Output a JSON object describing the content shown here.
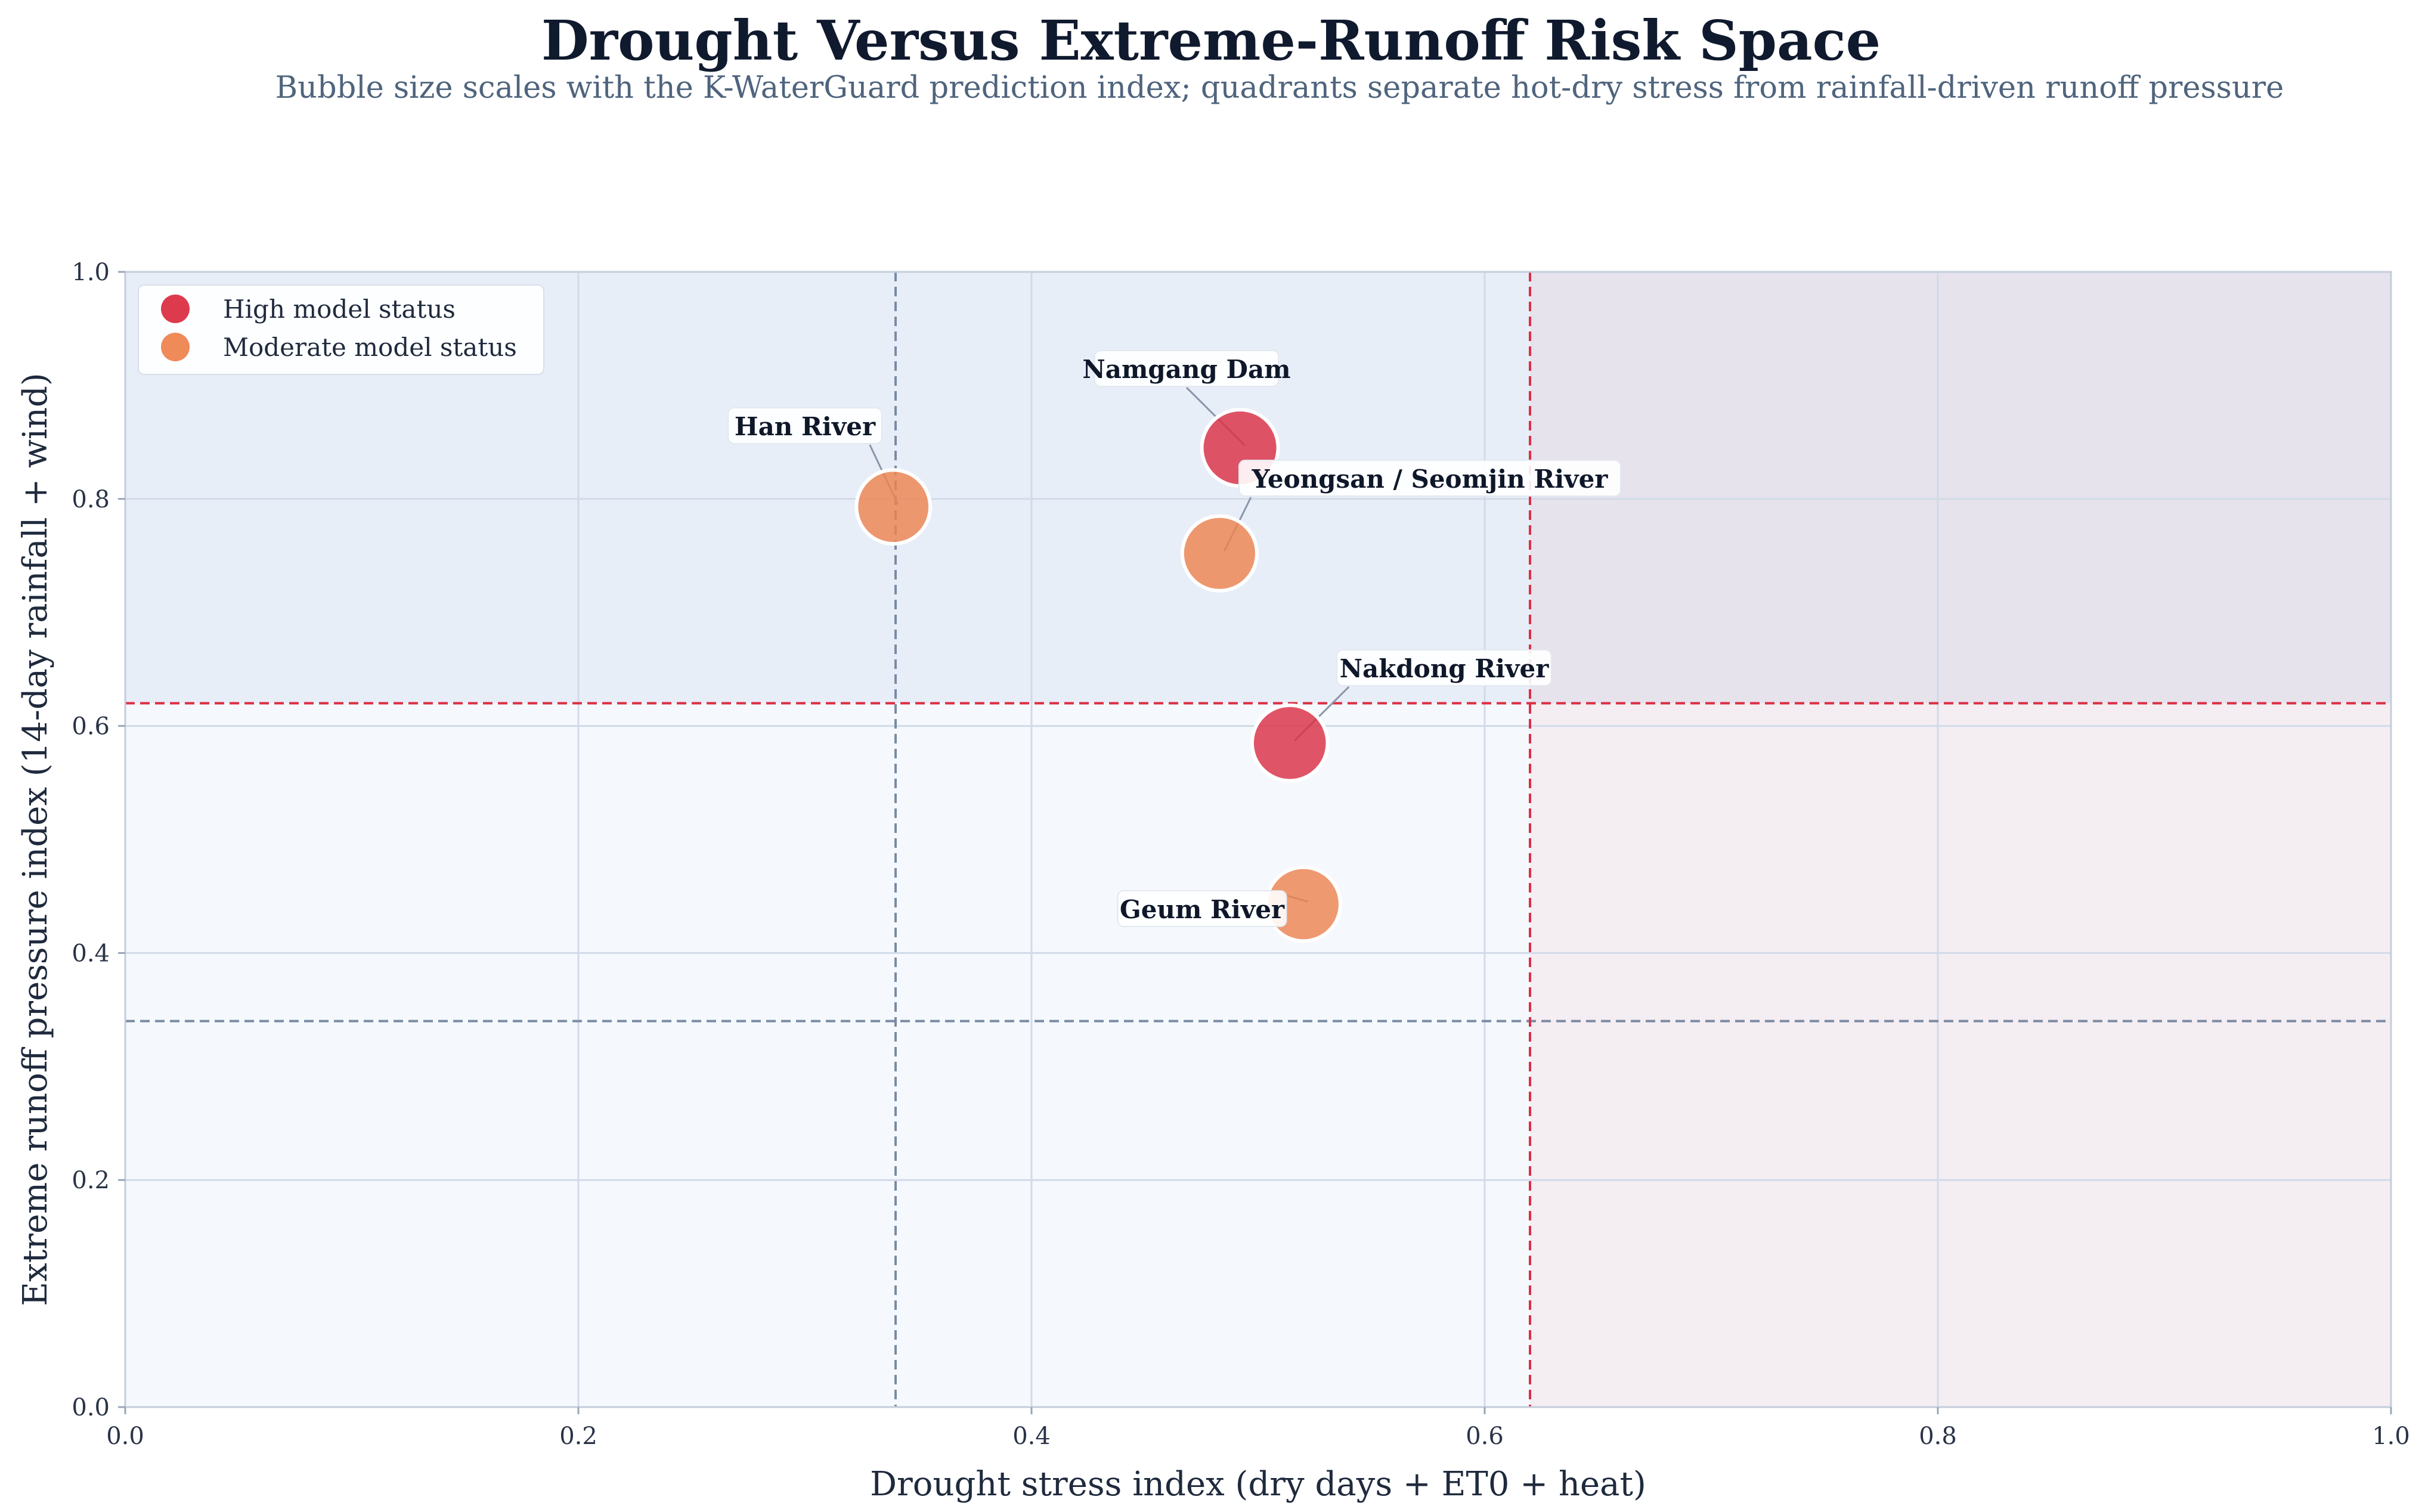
{
  "chart_data": {
    "type": "scatter",
    "title": "Drought Versus Extreme-Runoff Risk Space",
    "subtitle": "Bubble size scales with the K-WaterGuard prediction index; quadrants separate hot-dry stress from rainfall-driven runoff pressure",
    "xlabel": "Drought stress index (dry days + ET0 + heat)",
    "ylabel": "Extreme runoff pressure index (14-day rainfall + wind)",
    "xlim": [
      0,
      1
    ],
    "ylim": [
      0,
      1
    ],
    "xticks": [
      "0.0",
      "0.2",
      "0.4",
      "0.6",
      "0.8",
      "1.0"
    ],
    "yticks": [
      "0.0",
      "0.2",
      "0.4",
      "0.6",
      "0.8",
      "1.0"
    ],
    "grid": true,
    "legend_position": "top-left",
    "thresholds": {
      "drought_high": 0.62,
      "runoff_high": 0.62,
      "drought_mean": 0.34,
      "runoff_mean": 0.34
    },
    "colors": {
      "high": "#dc2f45",
      "moderate": "#ee8450",
      "threshold": "#dc2f45",
      "mean_line": "#7a8ba3",
      "quad_top_left": "#e8eef8",
      "quad_top_right": "#e6e3ec",
      "quad_bottom_left": "#f5f9fe",
      "quad_bottom_right": "#f4eef3"
    },
    "legend": [
      {
        "key": "high",
        "label": "High model status"
      },
      {
        "key": "moderate",
        "label": "Moderate model status"
      }
    ],
    "series": [
      {
        "name": "High model status",
        "key": "high"
      },
      {
        "name": "Moderate model status",
        "key": "moderate"
      }
    ],
    "points": [
      {
        "label": "Namgang Dam",
        "x": 0.492,
        "y": 0.845,
        "status": "high",
        "size": 1.0
      },
      {
        "label": "Han River",
        "x": 0.339,
        "y": 0.793,
        "status": "moderate",
        "size": 0.85
      },
      {
        "label": "Yeongsan / Seomjin River",
        "x": 0.483,
        "y": 0.752,
        "status": "moderate",
        "size": 0.9
      },
      {
        "label": "Nakdong River",
        "x": 0.514,
        "y": 0.585,
        "status": "high",
        "size": 0.95
      },
      {
        "label": "Geum River",
        "x": 0.52,
        "y": 0.443,
        "status": "moderate",
        "size": 0.85
      }
    ]
  }
}
